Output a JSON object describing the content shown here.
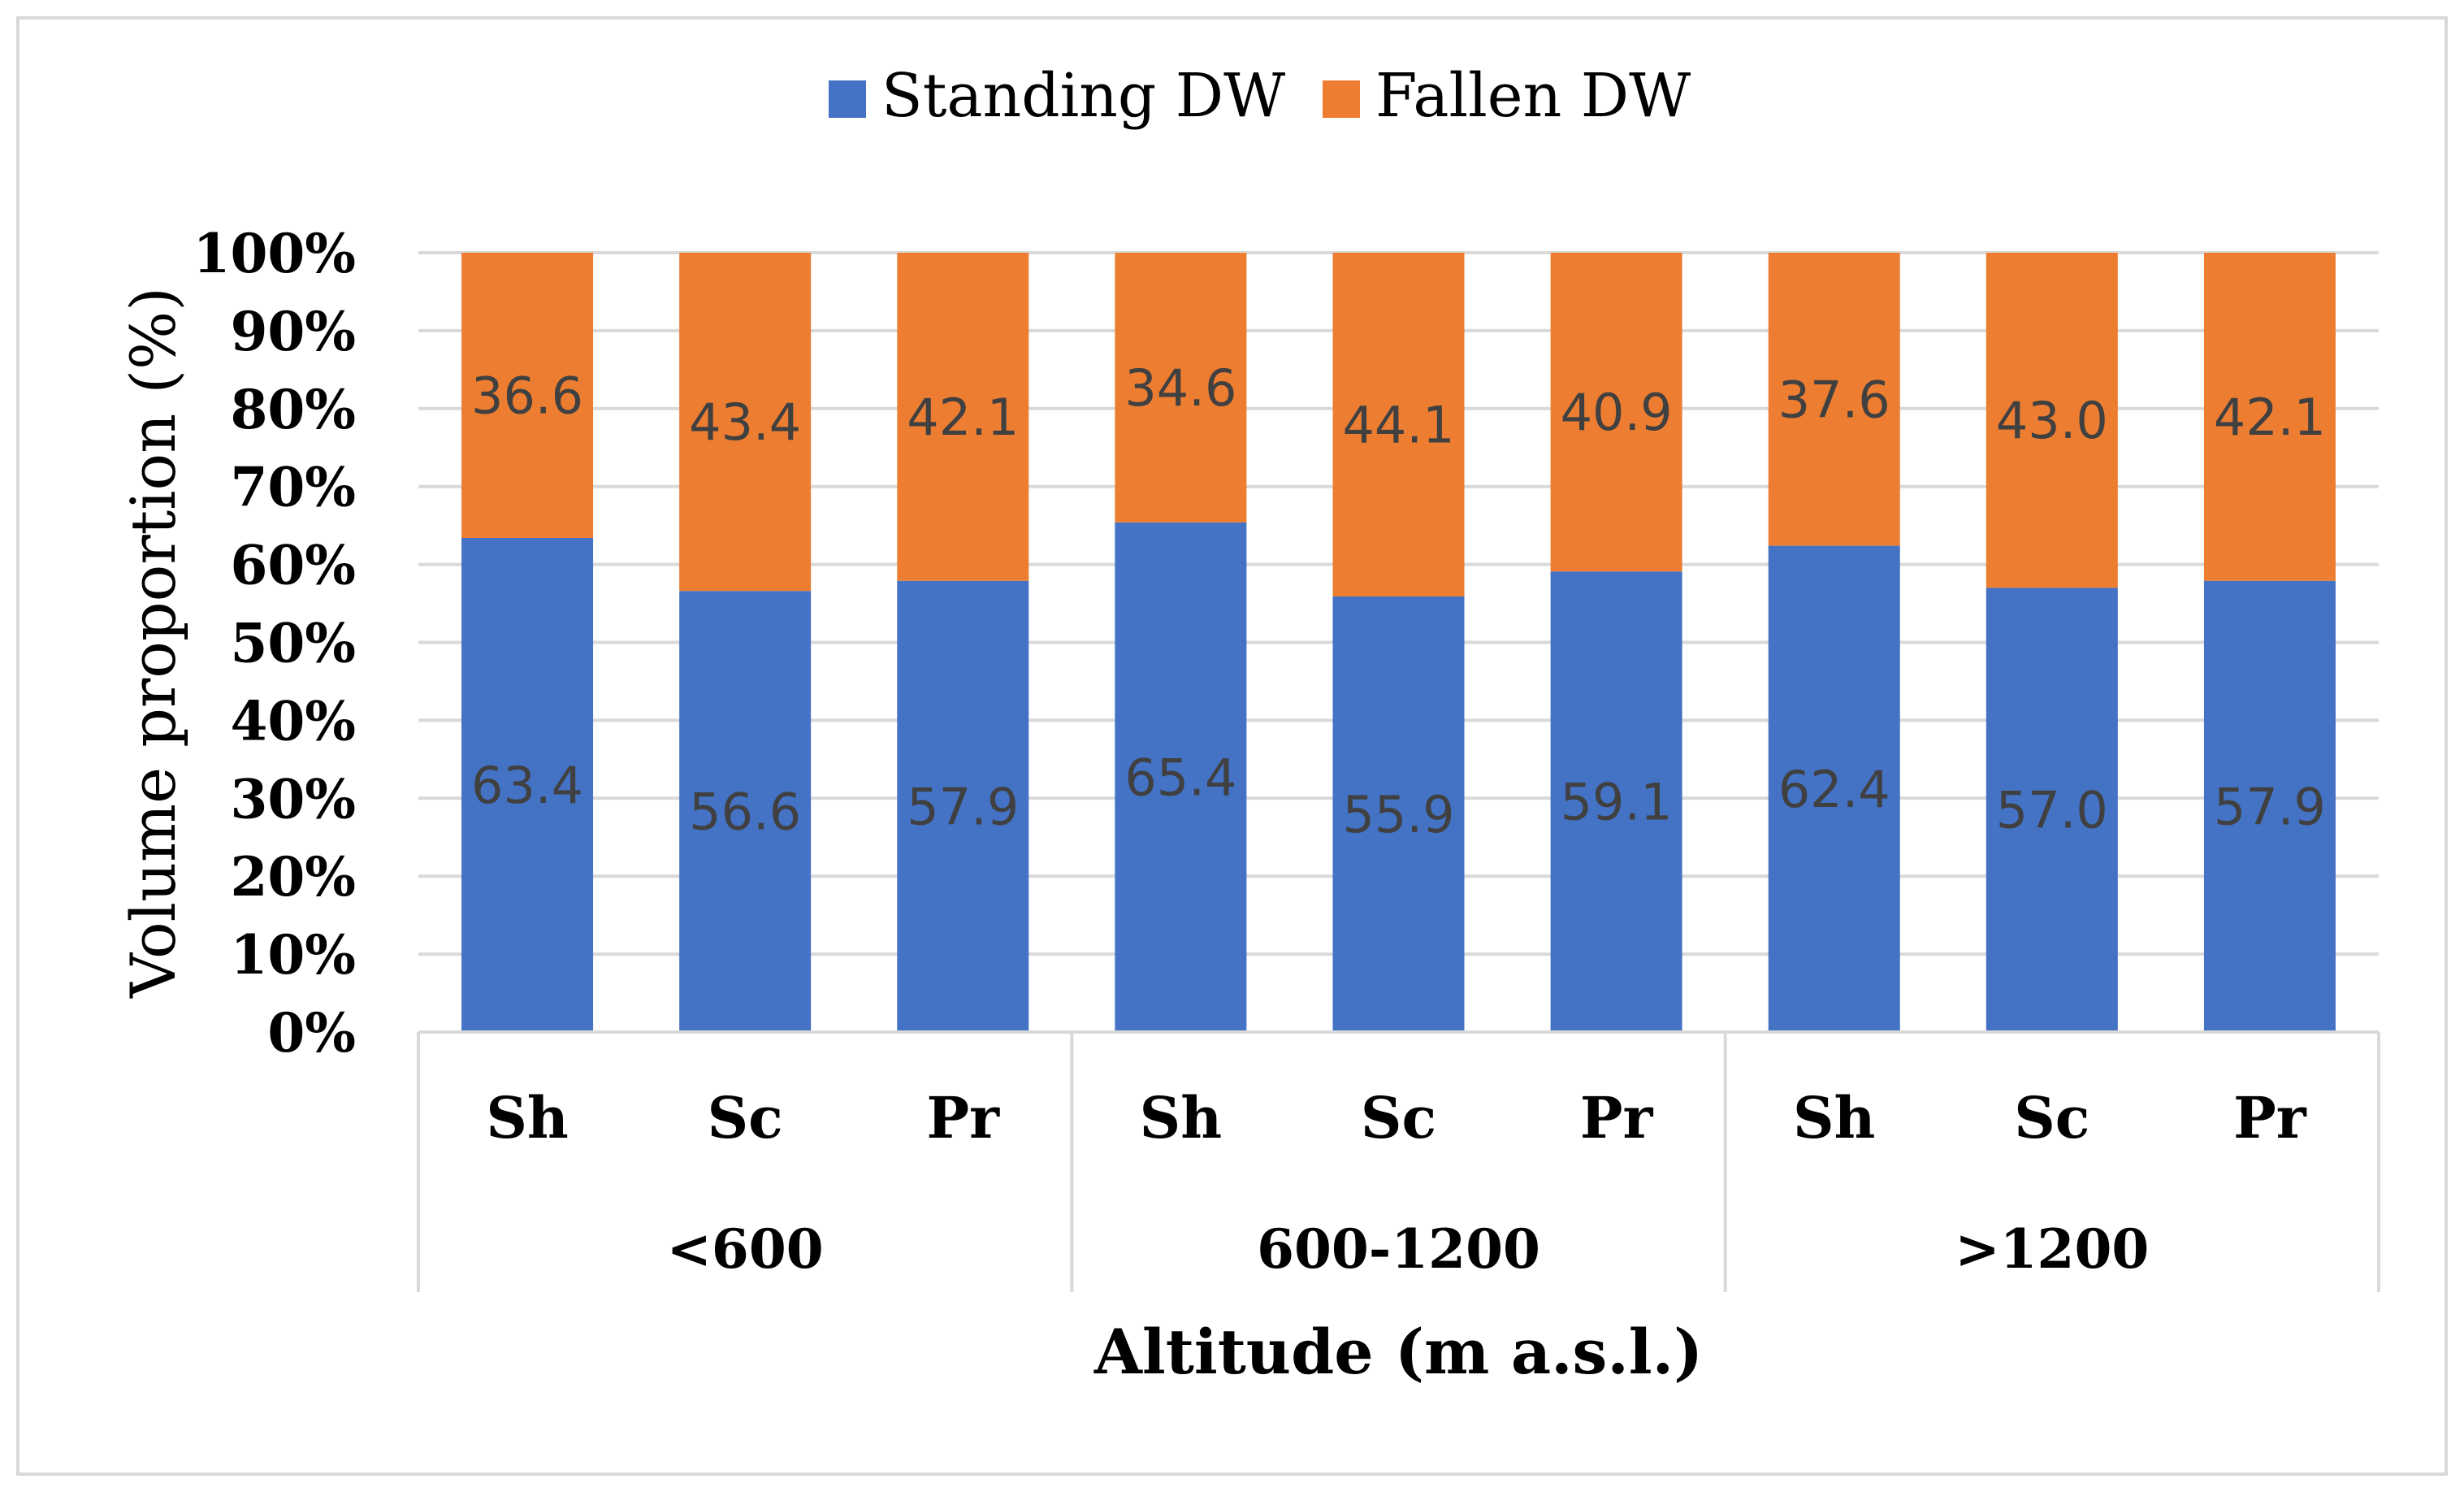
{
  "chart_data": {
    "type": "bar",
    "stacked": true,
    "title": "",
    "xlabel": "Altitude (m a.s.l.)",
    "ylabel": "Volume proportion (%)",
    "ylim": [
      0,
      100
    ],
    "yticks": [
      "0%",
      "10%",
      "20%",
      "30%",
      "40%",
      "50%",
      "60%",
      "70%",
      "80%",
      "90%",
      "100%"
    ],
    "groups": [
      "<600",
      "600-1200",
      ">1200"
    ],
    "categories": [
      "Sh",
      "Sc",
      "Pr",
      "Sh",
      "Sc",
      "Pr",
      "Sh",
      "Sc",
      "Pr"
    ],
    "series": [
      {
        "name": "Standing DW",
        "color": "#4472C4",
        "values": [
          63.4,
          56.6,
          57.9,
          65.4,
          55.9,
          59.1,
          62.4,
          57.0,
          57.9
        ],
        "labels": [
          "63.4",
          "56.6",
          "57.9",
          "65.4",
          "55.9",
          "59.1",
          "62.4",
          "57.0",
          "57.9"
        ]
      },
      {
        "name": "Fallen DW",
        "color": "#ED7D31",
        "values": [
          36.6,
          43.4,
          42.1,
          34.6,
          44.1,
          40.9,
          37.6,
          43.0,
          42.1
        ],
        "labels": [
          "36.6",
          "43.4",
          "42.1",
          "34.6",
          "44.1",
          "40.9",
          "37.6",
          "43.0",
          "42.1"
        ]
      }
    ],
    "legend_position": "top-center",
    "grid": true
  },
  "colors": {
    "grid": "#D9D9D9",
    "text": "#000000",
    "data_label": "#404040",
    "frame": "#D9D9D9"
  }
}
